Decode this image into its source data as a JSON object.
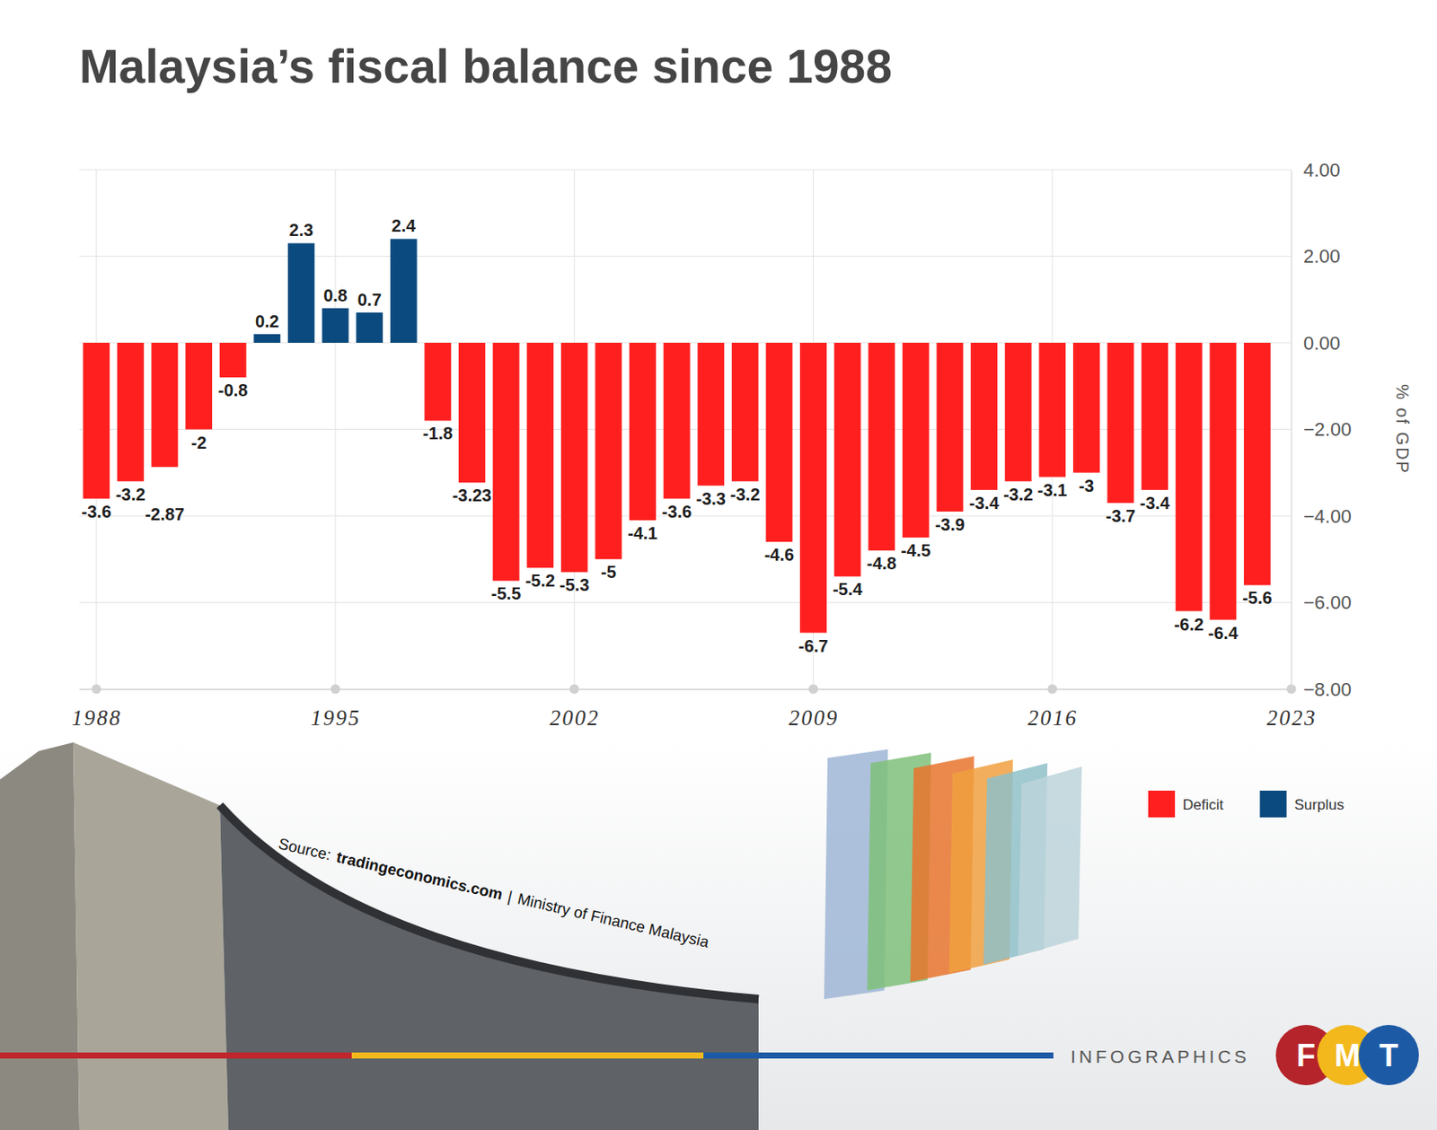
{
  "chart_data": {
    "type": "bar",
    "title": "Malaysia’s fiscal balance since 1988",
    "ylabel": "% of GDP",
    "x": [
      1988,
      1989,
      1990,
      1991,
      1992,
      1993,
      1994,
      1995,
      1996,
      1997,
      1998,
      1999,
      2000,
      2001,
      2002,
      2003,
      2004,
      2005,
      2006,
      2007,
      2008,
      2009,
      2010,
      2011,
      2012,
      2013,
      2014,
      2015,
      2016,
      2017,
      2018,
      2019,
      2020,
      2021,
      2022
    ],
    "series": [
      {
        "name": "Deficit",
        "color": "#ff1f1f",
        "values": [
          -3.6,
          -3.2,
          -2.87,
          -2,
          -0.8,
          null,
          null,
          null,
          null,
          null,
          -1.8,
          -3.23,
          -5.5,
          -5.2,
          -5.3,
          -5,
          -4.1,
          -3.6,
          -3.3,
          -3.2,
          -4.6,
          -6.7,
          -5.4,
          -4.8,
          -4.5,
          -3.9,
          -3.4,
          -3.2,
          -3.1,
          -3,
          -3.7,
          -3.4,
          -6.2,
          -6.4,
          -5.6
        ]
      },
      {
        "name": "Surplus",
        "color": "#0b4a7e",
        "values": [
          null,
          null,
          null,
          null,
          null,
          0.2,
          2.3,
          0.8,
          0.7,
          2.4,
          null,
          null,
          null,
          null,
          null,
          null,
          null,
          null,
          null,
          null,
          null,
          null,
          null,
          null,
          null,
          null,
          null,
          null,
          null,
          null,
          null,
          null,
          null,
          null,
          null
        ]
      }
    ],
    "xlim": [
      1987.5,
      2023
    ],
    "xticks": [
      1988,
      1995,
      2002,
      2009,
      2016,
      2023
    ],
    "ylim": [
      -8,
      4
    ],
    "yticks": [
      {
        "value": 4,
        "label": "4.00"
      },
      {
        "value": 2,
        "label": "2.00"
      },
      {
        "value": 0,
        "label": "0.00"
      },
      {
        "value": -2,
        "label": "−2.00"
      },
      {
        "value": -4,
        "label": "−4.00"
      },
      {
        "value": -6,
        "label": "−6.00"
      },
      {
        "value": -8,
        "label": "−8.00"
      }
    ],
    "grid": true,
    "data_labels": true,
    "legend": "bottom-right",
    "annotations": {
      "source": [
        "Source:",
        "tradingeconomics.com",
        "|",
        "Ministry of Finance Malaysia"
      ],
      "footer": "INFOGRAPHICS",
      "logo": [
        "F",
        "M",
        "T"
      ]
    }
  }
}
